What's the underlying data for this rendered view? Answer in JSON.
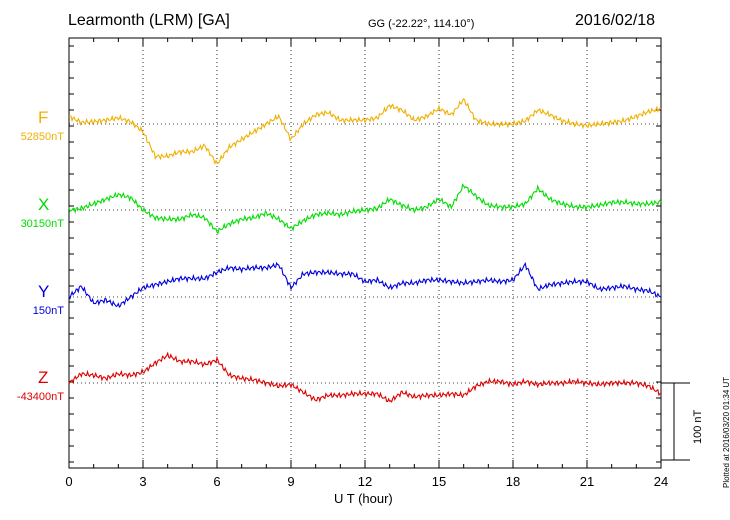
{
  "header": {
    "station": "Learmonth (LRM)  [GA]",
    "coords": "GG (-22.22°, 114.10°)",
    "date": "2016/02/18"
  },
  "plotted_note": "Plotted at 2016/03/20 01:34 UT",
  "scale_bar_label": "100 nT",
  "chart_data": {
    "type": "line",
    "xlabel": "U T (hour)",
    "x_ticks": [
      "0",
      "3",
      "6",
      "9",
      "12",
      "15",
      "18",
      "21",
      "24"
    ],
    "xlim": [
      0,
      24
    ],
    "grid": true,
    "scale_bar_nT": 100,
    "series": [
      {
        "name": "F",
        "baseline_label": "52850nT",
        "baseline_nT": 52850,
        "color": "#f0b000",
        "x": [
          0,
          0.5,
          1,
          1.5,
          2,
          2.5,
          3,
          3.5,
          4,
          4.5,
          5,
          5.5,
          6,
          6.5,
          7,
          7.5,
          8,
          8.5,
          9,
          9.5,
          10,
          10.5,
          11,
          11.5,
          12,
          12.5,
          13,
          13.5,
          14,
          14.5,
          15,
          15.5,
          16,
          16.5,
          17,
          17.5,
          18,
          18.5,
          19,
          19.5,
          20,
          20.5,
          21,
          21.5,
          22,
          22.5,
          23,
          23.5,
          24
        ],
        "values": [
          10,
          2,
          3,
          5,
          8,
          3,
          -10,
          -42,
          -42,
          -36,
          -36,
          -28,
          -52,
          -30,
          -20,
          -10,
          0,
          10,
          -20,
          0,
          12,
          15,
          5,
          5,
          5,
          8,
          24,
          18,
          5,
          10,
          20,
          12,
          32,
          5,
          0,
          0,
          0,
          4,
          18,
          12,
          4,
          0,
          -2,
          0,
          2,
          4,
          10,
          16,
          20
        ]
      },
      {
        "name": "X",
        "baseline_label": "30150nT",
        "baseline_nT": 30150,
        "color": "#00dd00",
        "x": [
          0,
          0.5,
          1,
          1.5,
          2,
          2.5,
          3,
          3.5,
          4,
          4.5,
          5,
          5.5,
          6,
          6.5,
          7,
          7.5,
          8,
          8.5,
          9,
          9.5,
          10,
          10.5,
          11,
          11.5,
          12,
          12.5,
          13,
          13.5,
          14,
          14.5,
          15,
          15.5,
          16,
          16.5,
          17,
          17.5,
          18,
          18.5,
          19,
          19.5,
          20,
          20.5,
          21,
          21.5,
          22,
          22.5,
          23,
          23.5,
          24
        ],
        "values": [
          0,
          2,
          8,
          14,
          20,
          16,
          0,
          -10,
          -12,
          -12,
          -6,
          -10,
          -28,
          -18,
          -12,
          -10,
          -4,
          -12,
          -24,
          -14,
          -6,
          -4,
          -6,
          -2,
          0,
          2,
          14,
          6,
          0,
          4,
          14,
          4,
          32,
          18,
          6,
          4,
          4,
          8,
          28,
          14,
          8,
          4,
          4,
          6,
          10,
          10,
          8,
          8,
          10
        ]
      },
      {
        "name": "Y",
        "baseline_label": "150nT",
        "baseline_nT": 150,
        "color": "#0000dd",
        "x": [
          0,
          0.5,
          1,
          1.5,
          2,
          2.5,
          3,
          3.5,
          4,
          4.5,
          5,
          5.5,
          6,
          6.5,
          7,
          7.5,
          8,
          8.5,
          9,
          9.5,
          10,
          10.5,
          11,
          11.5,
          12,
          12.5,
          13,
          13.5,
          14,
          14.5,
          15,
          15.5,
          16,
          16.5,
          17,
          17.5,
          18,
          18.5,
          19,
          19.5,
          20,
          20.5,
          21,
          21.5,
          22,
          22.5,
          23,
          23.5,
          24
        ],
        "values": [
          0,
          14,
          -8,
          -4,
          -12,
          0,
          12,
          16,
          20,
          24,
          24,
          24,
          32,
          38,
          36,
          38,
          38,
          42,
          12,
          30,
          32,
          32,
          30,
          30,
          20,
          22,
          12,
          18,
          18,
          22,
          22,
          20,
          18,
          20,
          22,
          20,
          22,
          42,
          10,
          16,
          18,
          20,
          20,
          10,
          12,
          14,
          10,
          8,
          0
        ]
      },
      {
        "name": "Z",
        "baseline_label": "-43400nT",
        "baseline_nT": -43400,
        "color": "#dd0000",
        "x": [
          0,
          0.5,
          1,
          1.5,
          2,
          2.5,
          3,
          3.5,
          4,
          4.5,
          5,
          5.5,
          6,
          6.5,
          7,
          7.5,
          8,
          8.5,
          9,
          9.5,
          10,
          10.5,
          11,
          11.5,
          12,
          12.5,
          13,
          13.5,
          14,
          14.5,
          15,
          15.5,
          16,
          16.5,
          17,
          17.5,
          18,
          18.5,
          19,
          19.5,
          20,
          20.5,
          21,
          21.5,
          22,
          22.5,
          23,
          23.5,
          24
        ],
        "values": [
          0,
          12,
          10,
          6,
          12,
          10,
          14,
          26,
          36,
          28,
          28,
          24,
          30,
          10,
          6,
          4,
          0,
          -4,
          -2,
          -12,
          -22,
          -16,
          -16,
          -14,
          -14,
          -14,
          -24,
          -12,
          -18,
          -16,
          -16,
          -14,
          -16,
          -4,
          2,
          2,
          -2,
          2,
          -2,
          0,
          0,
          2,
          0,
          -2,
          0,
          0,
          0,
          -4,
          -14
        ]
      }
    ]
  }
}
